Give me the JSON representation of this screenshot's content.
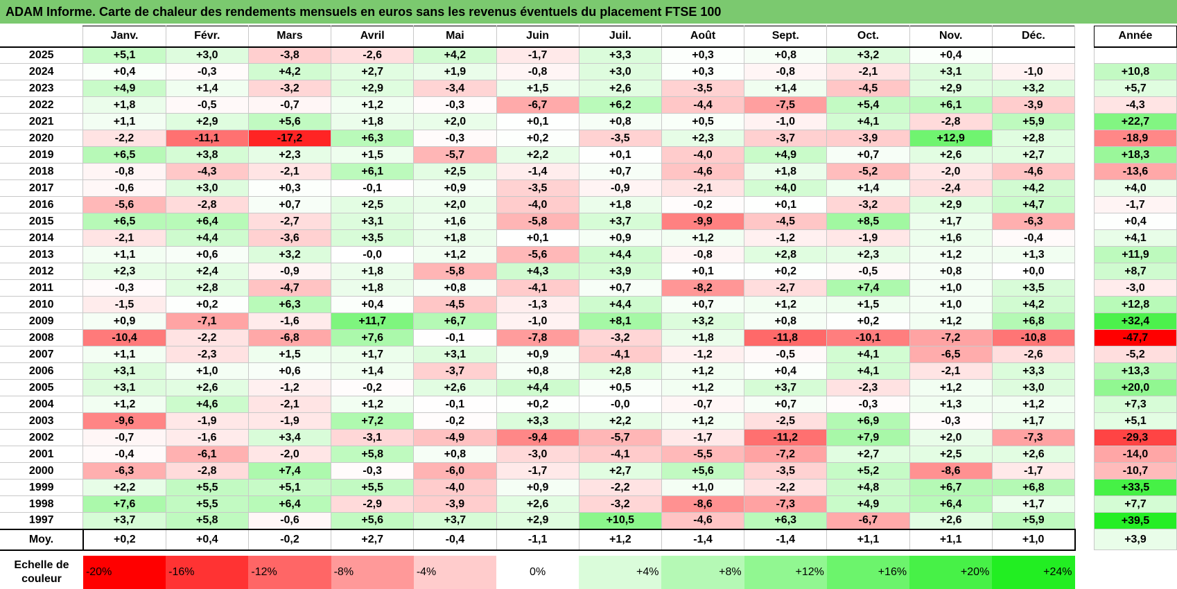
{
  "title": "ADAM Informe. Carte de chaleur des rendements mensuels en euros sans les revenus éventuels du placement FTSE 100",
  "chart_data": {
    "type": "heatmap",
    "title": "ADAM Informe. Carte de chaleur des rendements mensuels en euros sans les revenus éventuels du placement FTSE 100",
    "months": [
      "Janv.",
      "Févr.",
      "Mars",
      "Avril",
      "Mai",
      "Juin",
      "Juil.",
      "Août",
      "Sept.",
      "Oct.",
      "Nov.",
      "Déc."
    ],
    "annual_header": "Année",
    "rows": [
      {
        "year": "2025",
        "values": [
          "+5,1",
          "+3,0",
          "-3,8",
          "-2,6",
          "+4,2",
          "-1,7",
          "+3,3",
          "+0,3",
          "+0,8",
          "+3,2",
          "+0,4",
          ""
        ],
        "annual": ""
      },
      {
        "year": "2024",
        "values": [
          "+0,4",
          "-0,3",
          "+4,2",
          "+2,7",
          "+1,9",
          "-0,8",
          "+3,0",
          "+0,3",
          "-0,8",
          "-2,1",
          "+3,1",
          "-1,0"
        ],
        "annual": "+10,8"
      },
      {
        "year": "2023",
        "values": [
          "+4,9",
          "+1,4",
          "-3,2",
          "+2,9",
          "-3,4",
          "+1,5",
          "+2,6",
          "-3,5",
          "+1,4",
          "-4,5",
          "+2,9",
          "+3,2"
        ],
        "annual": "+5,7"
      },
      {
        "year": "2022",
        "values": [
          "+1,8",
          "-0,5",
          "-0,7",
          "+1,2",
          "-0,3",
          "-6,7",
          "+6,2",
          "-4,4",
          "-7,5",
          "+5,4",
          "+6,1",
          "-3,9"
        ],
        "annual": "-4,3"
      },
      {
        "year": "2021",
        "values": [
          "+1,1",
          "+2,9",
          "+5,6",
          "+1,8",
          "+2,0",
          "+0,1",
          "+0,8",
          "+0,5",
          "-1,0",
          "+4,1",
          "-2,8",
          "+5,9"
        ],
        "annual": "+22,7"
      },
      {
        "year": "2020",
        "values": [
          "-2,2",
          "-11,1",
          "-17,2",
          "+6,3",
          "-0,3",
          "+0,2",
          "-3,5",
          "+2,3",
          "-3,7",
          "-3,9",
          "+12,9",
          "+2,8"
        ],
        "annual": "-18,9"
      },
      {
        "year": "2019",
        "values": [
          "+6,5",
          "+3,8",
          "+2,3",
          "+1,5",
          "-5,7",
          "+2,2",
          "+0,1",
          "-4,0",
          "+4,9",
          "+0,7",
          "+2,6",
          "+2,7"
        ],
        "annual": "+18,3"
      },
      {
        "year": "2018",
        "values": [
          "-0,8",
          "-4,3",
          "-2,1",
          "+6,1",
          "+2,5",
          "-1,4",
          "+0,7",
          "-4,6",
          "+1,8",
          "-5,2",
          "-2,0",
          "-4,6"
        ],
        "annual": "-13,6"
      },
      {
        "year": "2017",
        "values": [
          "-0,6",
          "+3,0",
          "+0,3",
          "-0,1",
          "+0,9",
          "-3,5",
          "-0,9",
          "-2,1",
          "+4,0",
          "+1,4",
          "-2,4",
          "+4,2"
        ],
        "annual": "+4,0"
      },
      {
        "year": "2016",
        "values": [
          "-5,6",
          "-2,8",
          "+0,7",
          "+2,5",
          "+2,0",
          "-4,0",
          "+1,8",
          "-0,2",
          "+0,1",
          "-3,2",
          "+2,9",
          "+4,7"
        ],
        "annual": "-1,7"
      },
      {
        "year": "2015",
        "values": [
          "+6,5",
          "+6,4",
          "-2,7",
          "+3,1",
          "+1,6",
          "-5,8",
          "+3,7",
          "-9,9",
          "-4,5",
          "+8,5",
          "+1,7",
          "-6,3"
        ],
        "annual": "+0,4"
      },
      {
        "year": "2014",
        "values": [
          "-2,1",
          "+4,4",
          "-3,6",
          "+3,5",
          "+1,8",
          "+0,1",
          "+0,9",
          "+1,2",
          "-1,2",
          "-1,9",
          "+1,6",
          "-0,4"
        ],
        "annual": "+4,1"
      },
      {
        "year": "2013",
        "values": [
          "+1,1",
          "+0,6",
          "+3,2",
          "-0,0",
          "+1,2",
          "-5,6",
          "+4,4",
          "-0,8",
          "+2,8",
          "+2,3",
          "+1,2",
          "+1,3"
        ],
        "annual": "+11,9"
      },
      {
        "year": "2012",
        "values": [
          "+2,3",
          "+2,4",
          "-0,9",
          "+1,8",
          "-5,8",
          "+4,3",
          "+3,9",
          "+0,1",
          "+0,2",
          "-0,5",
          "+0,8",
          "+0,0"
        ],
        "annual": "+8,7"
      },
      {
        "year": "2011",
        "values": [
          "-0,3",
          "+2,8",
          "-4,7",
          "+1,8",
          "+0,8",
          "-4,1",
          "+0,7",
          "-8,2",
          "-2,7",
          "+7,4",
          "+1,0",
          "+3,5"
        ],
        "annual": "-3,0"
      },
      {
        "year": "2010",
        "values": [
          "-1,5",
          "+0,2",
          "+6,3",
          "+0,4",
          "-4,5",
          "-1,3",
          "+4,4",
          "+0,7",
          "+1,2",
          "+1,5",
          "+1,0",
          "+4,2"
        ],
        "annual": "+12,8"
      },
      {
        "year": "2009",
        "values": [
          "+0,9",
          "-7,1",
          "-1,6",
          "+11,7",
          "+6,7",
          "-1,0",
          "+8,1",
          "+3,2",
          "+0,8",
          "+0,2",
          "+1,2",
          "+6,8"
        ],
        "annual": "+32,4"
      },
      {
        "year": "2008",
        "values": [
          "-10,4",
          "-2,2",
          "-6,8",
          "+7,6",
          "-0,1",
          "-7,8",
          "-3,2",
          "+1,8",
          "-11,8",
          "-10,1",
          "-7,2",
          "-10,8"
        ],
        "annual": "-47,7"
      },
      {
        "year": "2007",
        "values": [
          "+1,1",
          "-2,3",
          "+1,5",
          "+1,7",
          "+3,1",
          "+0,9",
          "-4,1",
          "-1,2",
          "-0,5",
          "+4,1",
          "-6,5",
          "-2,6"
        ],
        "annual": "-5,2"
      },
      {
        "year": "2006",
        "values": [
          "+3,1",
          "+1,0",
          "+0,6",
          "+1,4",
          "-3,7",
          "+0,8",
          "+2,8",
          "+1,2",
          "+0,4",
          "+4,1",
          "-2,1",
          "+3,3"
        ],
        "annual": "+13,3"
      },
      {
        "year": "2005",
        "values": [
          "+3,1",
          "+2,6",
          "-1,2",
          "-0,2",
          "+2,6",
          "+4,4",
          "+0,5",
          "+1,2",
          "+3,7",
          "-2,3",
          "+1,2",
          "+3,0"
        ],
        "annual": "+20,0"
      },
      {
        "year": "2004",
        "values": [
          "+1,2",
          "+4,6",
          "-2,1",
          "+1,2",
          "-0,1",
          "+0,2",
          "-0,0",
          "-0,7",
          "+0,7",
          "-0,3",
          "+1,3",
          "+1,2"
        ],
        "annual": "+7,3"
      },
      {
        "year": "2003",
        "values": [
          "-9,6",
          "-1,9",
          "-1,9",
          "+7,2",
          "-0,2",
          "+3,3",
          "+2,2",
          "+1,2",
          "-2,5",
          "+6,9",
          "-0,3",
          "+1,7"
        ],
        "annual": "+5,1"
      },
      {
        "year": "2002",
        "values": [
          "-0,7",
          "-1,6",
          "+3,4",
          "-3,1",
          "-4,9",
          "-9,4",
          "-5,7",
          "-1,7",
          "-11,2",
          "+7,9",
          "+2,0",
          "-7,3"
        ],
        "annual": "-29,3"
      },
      {
        "year": "2001",
        "values": [
          "-0,4",
          "-6,1",
          "-2,0",
          "+5,8",
          "+0,8",
          "-3,0",
          "-4,1",
          "-5,5",
          "-7,2",
          "+2,7",
          "+2,5",
          "+2,6"
        ],
        "annual": "-14,0"
      },
      {
        "year": "2000",
        "values": [
          "-6,3",
          "-2,8",
          "+7,4",
          "-0,3",
          "-6,0",
          "-1,7",
          "+2,7",
          "+5,6",
          "-3,5",
          "+5,2",
          "-8,6",
          "-1,7"
        ],
        "annual": "-10,7"
      },
      {
        "year": "1999",
        "values": [
          "+2,2",
          "+5,5",
          "+5,1",
          "+5,5",
          "-4,0",
          "+0,9",
          "-2,2",
          "+1,0",
          "-2,2",
          "+4,8",
          "+6,7",
          "+6,8"
        ],
        "annual": "+33,5"
      },
      {
        "year": "1998",
        "values": [
          "+7,6",
          "+5,5",
          "+6,4",
          "-2,9",
          "-3,9",
          "+2,6",
          "-3,2",
          "-8,6",
          "-7,3",
          "+4,9",
          "+6,4",
          "+1,7"
        ],
        "annual": "+7,7"
      },
      {
        "year": "1997",
        "values": [
          "+3,7",
          "+5,8",
          "-0,6",
          "+5,6",
          "+3,7",
          "+2,9",
          "+10,5",
          "-4,6",
          "+6,3",
          "-6,7",
          "+2,6",
          "+5,9"
        ],
        "annual": "+39,5"
      }
    ],
    "average": {
      "label": "Moy.",
      "values": [
        "+0,2",
        "+0,4",
        "-0,2",
        "+2,7",
        "-0,4",
        "-1,1",
        "+1,2",
        "-1,4",
        "-1,4",
        "+1,1",
        "+1,1",
        "+1,0"
      ],
      "annual": "+3,9"
    },
    "scale": {
      "label": "Echelle de couleur",
      "stops": [
        "-20%",
        "-16%",
        "-12%",
        "-8%",
        "-4%",
        "0%",
        "+4%",
        "+8%",
        "+12%",
        "+16%",
        "+20%",
        "+24%"
      ]
    },
    "colors": {
      "negative_full": "#ff0000",
      "positive_full": "#22ee22",
      "neutral": "#ffffff",
      "title_bg": "#7bc96f"
    }
  }
}
